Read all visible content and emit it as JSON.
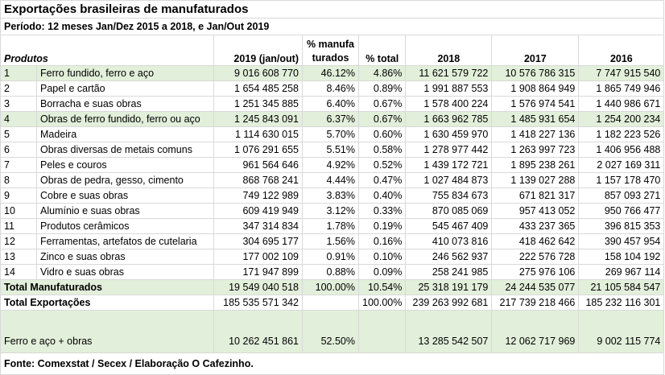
{
  "header": {
    "title": "Exportações brasileiras de manufaturados",
    "period": "Período: 12 meses Jan/Dez 2015 a 2018, e Jan/Out 2019"
  },
  "table": {
    "columns": [
      "Produtos",
      "2019 (jan/out)",
      "% manufa turados",
      "% total",
      "2018",
      "2017",
      "2016"
    ],
    "rows": [
      [
        "1",
        "Ferro fundido, ferro e aço",
        "9 016 608 770",
        "46.12%",
        "4.86%",
        "11 621 579 722",
        "10 576 786 315",
        "7 747 915 540"
      ],
      [
        "2",
        "Papel e cartão",
        "1 654 485 258",
        "8.46%",
        "0.89%",
        "1 991 887 553",
        "1 908 864 949",
        "1 865 749 946"
      ],
      [
        "3",
        "Borracha e suas obras",
        "1 251 345 885",
        "6.40%",
        "0.67%",
        "1 578 400 224",
        "1 576 974 541",
        "1 440 986 671"
      ],
      [
        "4",
        "Obras de ferro fundido, ferro ou aço",
        "1 245 843 091",
        "6.37%",
        "0.67%",
        "1 663 962 785",
        "1 485 931 654",
        "1 254 200 234"
      ],
      [
        "5",
        "Madeira",
        "1 114 630 015",
        "5.70%",
        "0.60%",
        "1 630 459 970",
        "1 418 227 136",
        "1 182 223 526"
      ],
      [
        "6",
        "Obras diversas de metais comuns",
        "1 076 291 655",
        "5.51%",
        "0.58%",
        "1 278 977 442",
        "1 263 997 723",
        "1 406 956 488"
      ],
      [
        "7",
        "Peles e couros",
        "961 564 646",
        "4.92%",
        "0.52%",
        "1 439 172 721",
        "1 895 238 261",
        "2 027 169 311"
      ],
      [
        "8",
        "Obras de pedra, gesso, cimento",
        "868 768 241",
        "4.44%",
        "0.47%",
        "1 027 484 873",
        "1 139 027 288",
        "1 157 178 470"
      ],
      [
        "9",
        "Cobre e suas obras",
        "749 122 989",
        "3.83%",
        "0.40%",
        "755 834 673",
        "671 821 317",
        "857 093 271"
      ],
      [
        "10",
        "Alumínio e suas obras",
        "609 419 949",
        "3.12%",
        "0.33%",
        "870 085 069",
        "957 413 052",
        "950 766 477"
      ],
      [
        "11",
        "Produtos cerâmicos",
        "347 314 834",
        "1.78%",
        "0.19%",
        "545 467 409",
        "433 237 365",
        "396 815 353"
      ],
      [
        "12",
        "Ferramentas, artefatos de cutelaria",
        "304 695 177",
        "1.56%",
        "0.16%",
        "410 073 816",
        "418 462 642",
        "390 457 954"
      ],
      [
        "13",
        "Zinco e suas obras",
        "177 002 109",
        "0.91%",
        "0.10%",
        "246 562 937",
        "222 576 728",
        "158 104 192"
      ],
      [
        "14",
        "Vidro e suas obras",
        "171 947 899",
        "0.88%",
        "0.09%",
        "258 241 985",
        "275 976 106",
        "269 967 114"
      ]
    ],
    "totals": [
      {
        "label": "Total Manufaturados",
        "values": [
          "19 549 040 518",
          "100.00%",
          "10.54%",
          "25 318 191 179",
          "24 244 535 077",
          "21 105 584 547"
        ]
      },
      {
        "label": "Total Exportações",
        "values": [
          "185 535 571 342",
          null,
          "100.00%",
          "239 263 992 681",
          "217 739 218 466",
          "185 232 116 301"
        ]
      },
      {
        "label": "Ferro e aço + obras",
        "values": [
          "10 262 451 861",
          "52.50%",
          null,
          "13 285 542 507",
          "12 062 717 969",
          "9 002 115 774"
        ]
      }
    ],
    "highlight_rows": [
      0,
      3
    ],
    "highlight_totals": [
      0,
      2
    ]
  },
  "footer": "Fonte: Comexstat / Secex / Elaboração O Cafezinho."
}
